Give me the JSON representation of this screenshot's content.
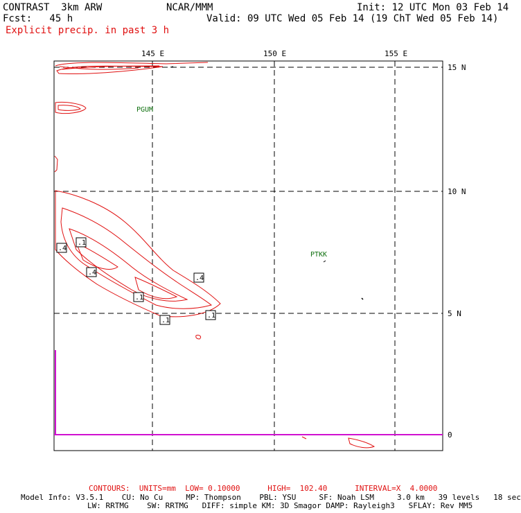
{
  "header": {
    "model": "CONTRAST  3km ARW",
    "org": "NCAR/MMM",
    "init": "Init: 12 UTC Mon 03 Feb 14",
    "fcst": "Fcst:   45 h",
    "valid": "Valid: 09 UTC Wed 05 Feb 14 (19 ChT Wed 05 Feb 14)",
    "field": "Explicit precip. in past 3 h"
  },
  "axes": {
    "lon_labels": [
      "145 E",
      "150 E",
      "155 E"
    ],
    "lat_labels": [
      "15 N",
      "10 N",
      "5 N",
      "0"
    ]
  },
  "stations": [
    "PGUM",
    "PTKK"
  ],
  "contour_labels": [
    ".4",
    ".1",
    ".4",
    ".4",
    ".1",
    ".1",
    ".1"
  ],
  "footer": {
    "contours": "CONTOURS:  UNITS=mm  LOW= 0.10000      HIGH=  102.40      INTERVAL=X  4.0000",
    "info1": "Model Info: V3.5.1    CU: No Cu     MP: Thompson    PBL: YSU     SF: Noah LSM     3.0 km   39 levels   18 sec",
    "info2": "LW: RRTMG    SW: RRTMG   DIFF: simple KM: 3D Smagor DAMP: Rayleigh3   SFLAY: Rev MM5"
  },
  "colors": {
    "precip": "#e01010",
    "station": "#107010",
    "equator_line": "#d010d0"
  }
}
